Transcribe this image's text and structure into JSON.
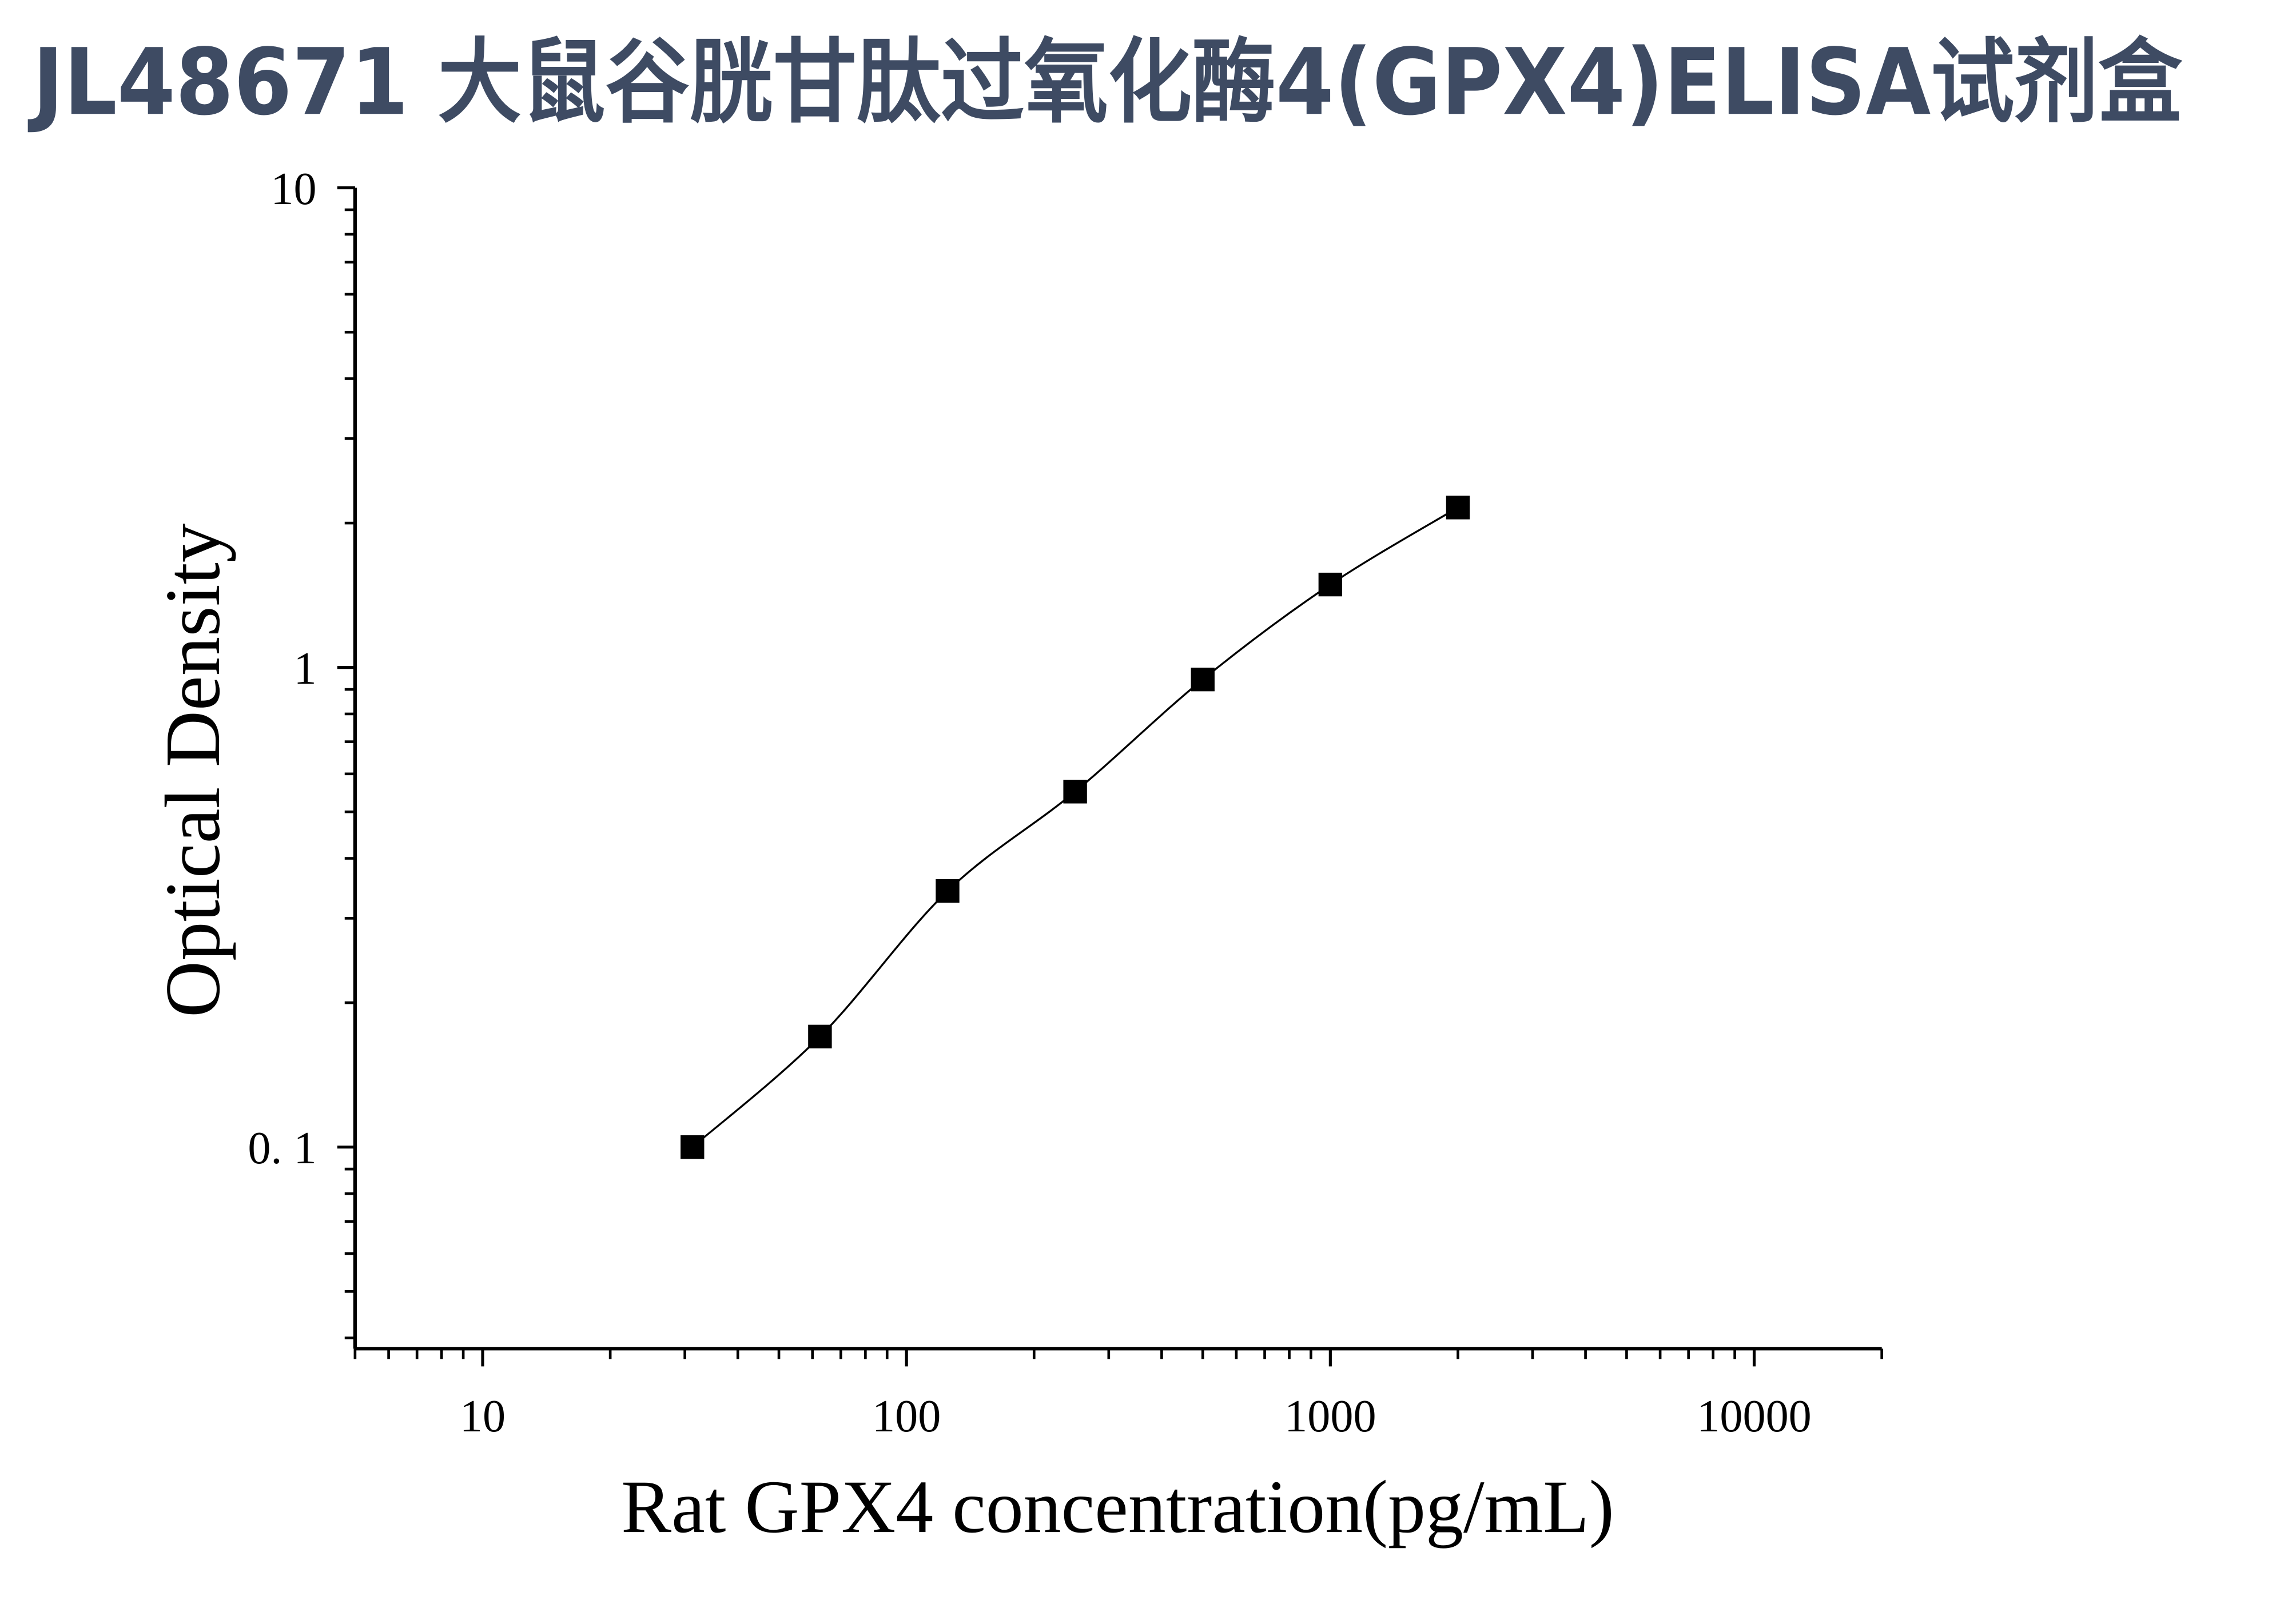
{
  "colors": {
    "title": "#3e4b63",
    "axis": "#000000",
    "marker": "#000000",
    "curve": "#000000",
    "background": "#ffffff"
  },
  "chart_data": {
    "type": "scatter",
    "title": "JL48671 大鼠谷胱甘肽过氧化酶4(GPX4)ELISA试剂盒",
    "xlabel": "Rat GPX4 concentration(pg/mL)",
    "ylabel": "Optical Density",
    "xscale": "log",
    "yscale": "log",
    "xlim": [
      5,
      20000
    ],
    "ylim": [
      0.038,
      10
    ],
    "xticks": [
      10,
      100,
      1000,
      10000
    ],
    "xtick_labels": [
      "10",
      "100",
      "1000",
      "10000"
    ],
    "yticks": [
      0.1,
      1,
      10
    ],
    "ytick_labels": [
      "0. 1",
      "1",
      "10"
    ],
    "minor_ticks": true,
    "grid": false,
    "legend": "none",
    "marker": "square",
    "fit_curve": true,
    "series": [
      {
        "x": [
          31.25,
          62.5,
          125,
          250,
          500,
          1000,
          2000
        ],
        "y": [
          0.1,
          0.17,
          0.342,
          0.551,
          0.944,
          1.489,
          2.155
        ]
      }
    ]
  }
}
